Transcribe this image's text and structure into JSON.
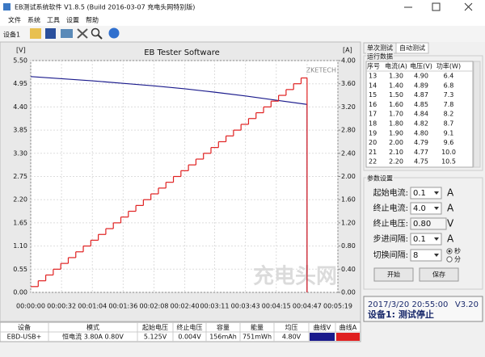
{
  "window": {
    "title": "EB测试系统软件 V1.8.5 (Build 2016-03-07 充电头网特别版)",
    "menu": [
      "文件",
      "系统",
      "工具",
      "设置",
      "帮助"
    ],
    "device": "设备1"
  },
  "chart_data": {
    "type": "line",
    "title": "EB Tester Software",
    "watermark": "ZKETECH",
    "site_mark": "充电头网",
    "y_label": "[V]",
    "y2_label": "[A]",
    "grid": true,
    "xlim": [
      0,
      319
    ],
    "xticks": [
      {
        "value": 0,
        "label": "00:00:00"
      },
      {
        "value": 32,
        "label": "00:00:32"
      },
      {
        "value": 64,
        "label": "00:01:04"
      },
      {
        "value": 96,
        "label": "00:01:36"
      },
      {
        "value": 128,
        "label": "00:02:08"
      },
      {
        "value": 160,
        "label": "00:02:40"
      },
      {
        "value": 191,
        "label": "00:03:11"
      },
      {
        "value": 223,
        "label": "00:03:43"
      },
      {
        "value": 255,
        "label": "00:04:15"
      },
      {
        "value": 287,
        "label": "00:04:47"
      },
      {
        "value": 319,
        "label": "00:05:19"
      }
    ],
    "ylim": [
      0,
      5.5
    ],
    "yticks": [
      {
        "value": 0,
        "label": "0.00"
      },
      {
        "value": 0.55,
        "label": "0.55"
      },
      {
        "value": 1.1,
        "label": "1.10"
      },
      {
        "value": 1.65,
        "label": "1.65"
      },
      {
        "value": 2.2,
        "label": "2.20"
      },
      {
        "value": 2.75,
        "label": "2.75"
      },
      {
        "value": 3.3,
        "label": "3.30"
      },
      {
        "value": 3.85,
        "label": "3.85"
      },
      {
        "value": 4.4,
        "label": "4.40"
      },
      {
        "value": 4.95,
        "label": "4.95"
      },
      {
        "value": 5.5,
        "label": "5.50"
      }
    ],
    "y2lim": [
      0,
      4
    ],
    "y2ticks": [
      {
        "value": 0,
        "label": "0.00"
      },
      {
        "value": 0.4,
        "label": "0.40"
      },
      {
        "value": 0.8,
        "label": "0.80"
      },
      {
        "value": 1.2,
        "label": "1.20"
      },
      {
        "value": 1.6,
        "label": "1.60"
      },
      {
        "value": 2,
        "label": "2.00"
      },
      {
        "value": 2.4,
        "label": "2.40"
      },
      {
        "value": 2.8,
        "label": "2.80"
      },
      {
        "value": 3.2,
        "label": "3.20"
      },
      {
        "value": 3.6,
        "label": "3.60"
      },
      {
        "value": 4,
        "label": "4.00"
      }
    ],
    "series": [
      {
        "color": "#1a1a8c",
        "x": [
          0,
          32,
          64,
          96,
          128,
          160,
          191,
          223,
          255,
          287,
          287
        ],
        "values": [
          5.12,
          5.07,
          5.02,
          4.96,
          4.9,
          4.83,
          4.75,
          4.66,
          4.56,
          4.46,
          0
        ]
      },
      {
        "color": "#e02020",
        "axis": "y2",
        "step": true,
        "x": [
          0,
          7.8,
          15.6,
          23.4,
          31.2,
          39,
          46.8,
          54.6,
          62.4,
          70.2,
          78,
          85.8,
          93.6,
          101.4,
          109.2,
          117,
          124.8,
          132.6,
          140.4,
          148.2,
          156,
          163.8,
          171.6,
          179.4,
          187.2,
          195,
          202.8,
          210.6,
          218.4,
          226.2,
          234,
          241.8,
          249.6,
          257.4,
          265.2,
          273,
          280.8,
          287
        ],
        "values": [
          0.1,
          0.2,
          0.3,
          0.4,
          0.5,
          0.6,
          0.7,
          0.8,
          0.9,
          1.0,
          1.1,
          1.2,
          1.3,
          1.4,
          1.5,
          1.6,
          1.7,
          1.8,
          1.9,
          2.0,
          2.1,
          2.2,
          2.3,
          2.4,
          2.5,
          2.6,
          2.7,
          2.8,
          2.9,
          3.0,
          3.1,
          3.2,
          3.3,
          3.4,
          3.5,
          3.6,
          3.7,
          0
        ]
      }
    ]
  },
  "tabs": [
    "单次测试",
    "自动测试"
  ],
  "run_data": {
    "title": "运行数据",
    "columns": [
      "序号",
      "电流(A)",
      "电压(V)",
      "功率(W)"
    ],
    "rows": [
      [
        "13",
        "1.30",
        "4.90",
        "6.4"
      ],
      [
        "14",
        "1.40",
        "4.89",
        "6.8"
      ],
      [
        "15",
        "1.50",
        "4.87",
        "7.3"
      ],
      [
        "16",
        "1.60",
        "4.85",
        "7.8"
      ],
      [
        "17",
        "1.70",
        "4.84",
        "8.2"
      ],
      [
        "18",
        "1.80",
        "4.82",
        "8.7"
      ],
      [
        "19",
        "1.90",
        "4.80",
        "9.1"
      ],
      [
        "20",
        "2.00",
        "4.79",
        "9.6"
      ],
      [
        "21",
        "2.10",
        "4.77",
        "10.0"
      ],
      [
        "22",
        "2.20",
        "4.75",
        "10.5"
      ]
    ]
  },
  "params": {
    "title": "参数设置",
    "rows": [
      {
        "label": "起始电流:",
        "value": "0.1",
        "unit": "A"
      },
      {
        "label": "终止电流:",
        "value": "4.0",
        "unit": "A"
      },
      {
        "label": "终止电压:",
        "value": "0.80",
        "unit": "V"
      },
      {
        "label": "步进间隔:",
        "value": "0.1",
        "unit": "A"
      },
      {
        "label": "切换间隔:",
        "value": "8"
      }
    ],
    "options": [
      "秒",
      "分"
    ],
    "buttons": [
      "开始",
      "保存"
    ]
  },
  "status": {
    "time": "2017/3/20 20:55:00",
    "version": "V3.20",
    "state": "设备1: 测试停止"
  },
  "summary": {
    "columns": [
      "设备",
      "模式",
      "起始电压",
      "终止电压",
      "容量",
      "能量",
      "均压",
      "曲线V",
      "曲线A"
    ],
    "row": [
      "EBD-USB+",
      "恒电流 3.80A 0.80V",
      "5.125V",
      "0.004V",
      "156mAh",
      "751mWh",
      "4.80V"
    ]
  }
}
